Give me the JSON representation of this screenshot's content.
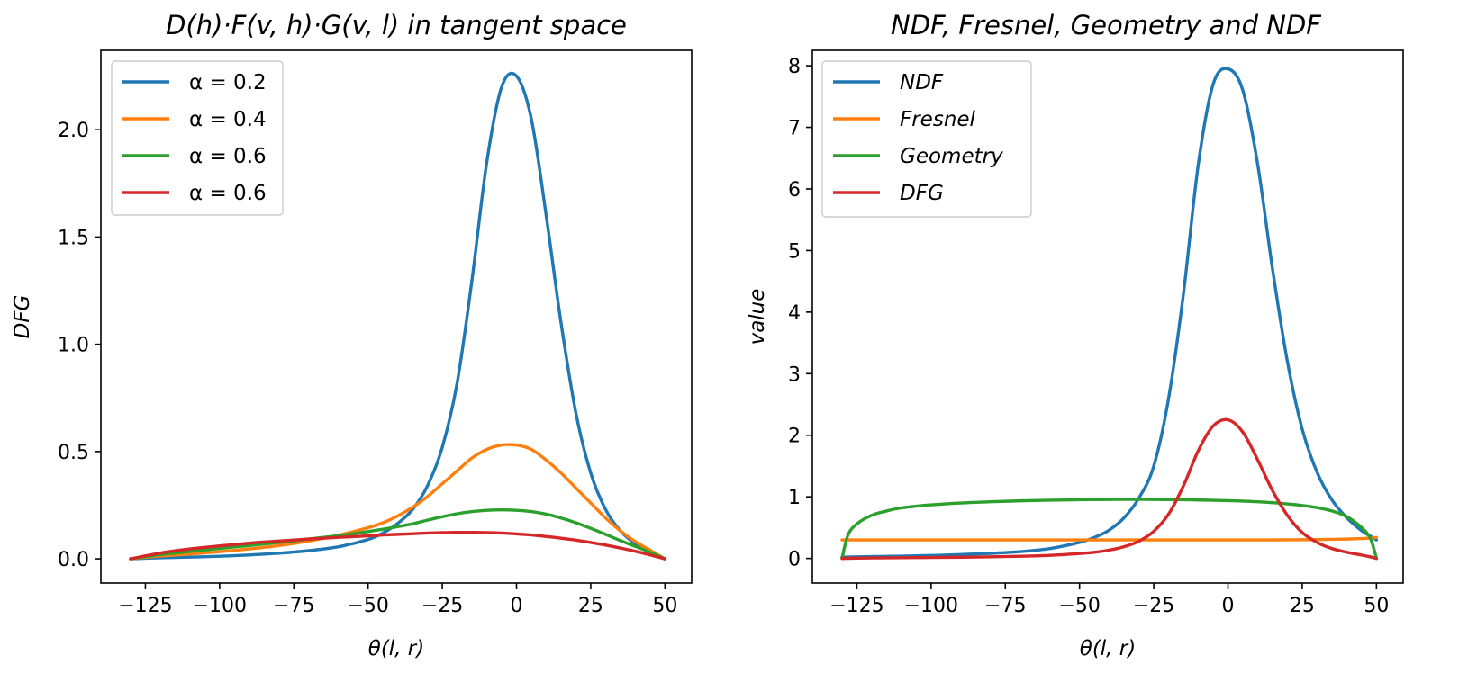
{
  "chart_data": [
    {
      "type": "line",
      "title": "D(h)·F(v, h)·G(v, l) in tangent space",
      "xlabel": "θ(l, r)",
      "ylabel": "DFG",
      "xlim": [
        -140,
        59
      ],
      "ylim": [
        -0.113,
        2.37
      ],
      "xticks": [
        -125,
        -100,
        -75,
        -50,
        -25,
        0,
        25,
        50
      ],
      "xtick_labels": [
        "−125",
        "−100",
        "−75",
        "−50",
        "−25",
        "0",
        "25",
        "50"
      ],
      "yticks": [
        0.0,
        0.5,
        1.0,
        1.5,
        2.0
      ],
      "ytick_labels": [
        "0.0",
        "0.5",
        "1.0",
        "1.5",
        "2.0"
      ],
      "grid": false,
      "legend_position": "top-left",
      "x": [
        -130,
        -120,
        -110,
        -100,
        -90,
        -80,
        -70,
        -60,
        -50,
        -45,
        -40,
        -35,
        -30,
        -25,
        -20,
        -15,
        -10,
        -5,
        0,
        5,
        10,
        15,
        20,
        25,
        30,
        35,
        40,
        45,
        50
      ],
      "series": [
        {
          "name": "α = 0.2",
          "color": "#1f77b4",
          "italic": false,
          "values": [
            0.0,
            0.005,
            0.008,
            0.012,
            0.018,
            0.026,
            0.038,
            0.056,
            0.09,
            0.12,
            0.165,
            0.23,
            0.34,
            0.52,
            0.82,
            1.3,
            1.85,
            2.2,
            2.25,
            2.05,
            1.6,
            1.1,
            0.68,
            0.4,
            0.23,
            0.13,
            0.07,
            0.03,
            0.0
          ]
        },
        {
          "name": "α = 0.4",
          "color": "#ff7f0e",
          "italic": false,
          "values": [
            0.0,
            0.013,
            0.022,
            0.033,
            0.046,
            0.062,
            0.083,
            0.11,
            0.145,
            0.168,
            0.2,
            0.24,
            0.29,
            0.35,
            0.41,
            0.47,
            0.51,
            0.53,
            0.53,
            0.51,
            0.46,
            0.4,
            0.33,
            0.26,
            0.19,
            0.13,
            0.08,
            0.04,
            0.0
          ]
        },
        {
          "name": "α = 0.6",
          "color": "#2ca02c",
          "italic": false,
          "values": [
            0.0,
            0.02,
            0.034,
            0.048,
            0.062,
            0.076,
            0.092,
            0.108,
            0.127,
            0.138,
            0.15,
            0.163,
            0.18,
            0.196,
            0.21,
            0.22,
            0.226,
            0.228,
            0.226,
            0.22,
            0.208,
            0.19,
            0.168,
            0.142,
            0.114,
            0.085,
            0.058,
            0.03,
            0.0
          ]
        },
        {
          "name": "α = 0.6",
          "color": "#d62728",
          "italic": false,
          "values": [
            0.0,
            0.027,
            0.046,
            0.06,
            0.073,
            0.083,
            0.092,
            0.1,
            0.107,
            0.111,
            0.114,
            0.117,
            0.12,
            0.122,
            0.123,
            0.123,
            0.122,
            0.12,
            0.116,
            0.111,
            0.104,
            0.096,
            0.087,
            0.076,
            0.064,
            0.05,
            0.035,
            0.018,
            0.0
          ]
        }
      ]
    },
    {
      "type": "line",
      "title": "NDF, Fresnel, Geometry and NDF",
      "xlabel": "θ(l, r)",
      "ylabel": "value",
      "xlim": [
        -140,
        59
      ],
      "ylim": [
        -0.4,
        8.25
      ],
      "xticks": [
        -125,
        -100,
        -75,
        -50,
        -25,
        0,
        25,
        50
      ],
      "xtick_labels": [
        "−125",
        "−100",
        "−75",
        "−50",
        "−25",
        "0",
        "25",
        "50"
      ],
      "yticks": [
        0,
        1,
        2,
        3,
        4,
        5,
        6,
        7,
        8
      ],
      "ytick_labels": [
        "0",
        "1",
        "2",
        "3",
        "4",
        "5",
        "6",
        "7",
        "8"
      ],
      "grid": false,
      "legend_position": "top-left",
      "x": [
        -130,
        -128,
        -125,
        -120,
        -115,
        -110,
        -100,
        -90,
        -80,
        -70,
        -60,
        -50,
        -45,
        -40,
        -35,
        -30,
        -25,
        -20,
        -15,
        -10,
        -5,
        0,
        5,
        10,
        15,
        20,
        25,
        30,
        35,
        40,
        45,
        48,
        50
      ],
      "series": [
        {
          "name": "NDF",
          "color": "#1f77b4",
          "italic": true,
          "values": [
            0.02,
            0.023,
            0.026,
            0.03,
            0.034,
            0.038,
            0.048,
            0.062,
            0.082,
            0.11,
            0.16,
            0.26,
            0.34,
            0.46,
            0.66,
            0.98,
            1.5,
            2.6,
            4.3,
            6.4,
            7.7,
            7.95,
            7.6,
            6.4,
            4.7,
            3.2,
            2.1,
            1.4,
            0.95,
            0.66,
            0.45,
            0.36,
            0.3
          ]
        },
        {
          "name": "Fresnel",
          "color": "#ff7f0e",
          "italic": true,
          "values": [
            0.3,
            0.3,
            0.3,
            0.3,
            0.3,
            0.3,
            0.3,
            0.3,
            0.3,
            0.3,
            0.3,
            0.3,
            0.3,
            0.3,
            0.3,
            0.3,
            0.3,
            0.3,
            0.3,
            0.3,
            0.3,
            0.3,
            0.3,
            0.3,
            0.301,
            0.302,
            0.304,
            0.306,
            0.31,
            0.314,
            0.322,
            0.33,
            0.34
          ]
        },
        {
          "name": "Geometry",
          "color": "#2ca02c",
          "italic": true,
          "values": [
            0.0,
            0.38,
            0.56,
            0.7,
            0.77,
            0.82,
            0.87,
            0.9,
            0.92,
            0.935,
            0.945,
            0.952,
            0.955,
            0.957,
            0.958,
            0.958,
            0.957,
            0.955,
            0.952,
            0.948,
            0.944,
            0.938,
            0.93,
            0.92,
            0.905,
            0.885,
            0.86,
            0.825,
            0.77,
            0.68,
            0.5,
            0.32,
            0.0
          ]
        },
        {
          "name": "DFG",
          "color": "#d62728",
          "italic": true,
          "values": [
            0.0,
            0.002,
            0.005,
            0.008,
            0.01,
            0.012,
            0.015,
            0.02,
            0.026,
            0.035,
            0.05,
            0.08,
            0.1,
            0.135,
            0.19,
            0.28,
            0.44,
            0.72,
            1.18,
            1.75,
            2.15,
            2.25,
            2.05,
            1.6,
            1.1,
            0.7,
            0.42,
            0.26,
            0.16,
            0.1,
            0.055,
            0.025,
            0.0
          ]
        }
      ]
    }
  ]
}
